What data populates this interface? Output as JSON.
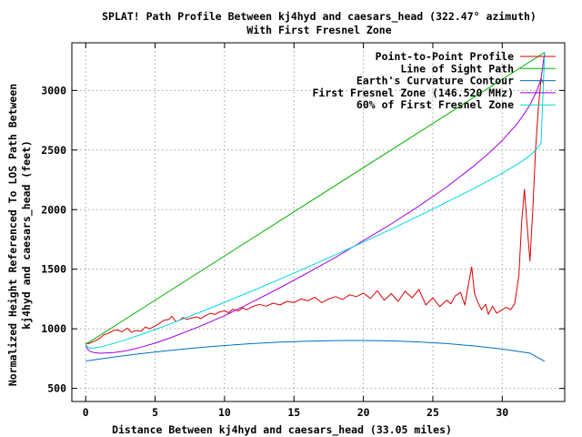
{
  "chart_data": {
    "type": "line",
    "title": "SPLAT! Path Profile Between kj4hyd and caesars_head (322.47° azimuth)",
    "subtitle": "With First Fresnel Zone",
    "xlabel": "Distance Between kj4hyd and caesars_head (33.05 miles)",
    "ylabel_line1": "Normalized Height Referenced To LOS Path Between",
    "ylabel_line2": "kj4hyd and caesars_head (feet)",
    "xlim": [
      -1,
      34.5
    ],
    "ylim": [
      390,
      3400
    ],
    "x_ticks": [
      0,
      5,
      10,
      15,
      20,
      25,
      30
    ],
    "x_tick_labels": [
      "0",
      "5",
      "10",
      "15",
      "20",
      "25",
      "30"
    ],
    "y_ticks": [
      500,
      1000,
      1500,
      2000,
      2500,
      3000
    ],
    "y_tick_labels": [
      "500",
      "1000",
      "1500",
      "2000",
      "2500",
      "3000"
    ],
    "grid": true,
    "legend_position": "top-right",
    "series": [
      {
        "name": "Point-to-Point Profile",
        "color": "#dd0000",
        "x": [
          0,
          0.2,
          0.5,
          0.8,
          1.0,
          1.3,
          1.6,
          2.0,
          2.3,
          2.6,
          3.0,
          3.3,
          3.6,
          4.0,
          4.3,
          4.6,
          5.0,
          5.3,
          5.6,
          6.0,
          6.2,
          6.5,
          6.8,
          7.0,
          7.3,
          7.6,
          8.0,
          8.3,
          8.6,
          9.0,
          9.3,
          9.6,
          10.0,
          10.3,
          10.6,
          11.0,
          11.3,
          11.6,
          12.0,
          12.5,
          13.0,
          13.5,
          14.0,
          14.5,
          15.0,
          15.5,
          16.0,
          16.5,
          17.0,
          17.5,
          18.0,
          18.5,
          19.0,
          19.5,
          20.0,
          20.5,
          21.0,
          21.5,
          22.0,
          22.5,
          23.0,
          23.5,
          24.0,
          24.5,
          25.0,
          25.5,
          26.0,
          26.3,
          26.6,
          27.0,
          27.3,
          27.6,
          27.8,
          28.0,
          28.2,
          28.5,
          28.8,
          29.0,
          29.3,
          29.6,
          30.0,
          30.3,
          30.6,
          30.9,
          31.2,
          31.4,
          31.6,
          31.8,
          32.0,
          32.2,
          32.4,
          32.6,
          32.8,
          33.0
        ],
        "y": [
          880,
          875,
          890,
          905,
          920,
          950,
          960,
          985,
          990,
          975,
          1005,
          970,
          985,
          980,
          1015,
          1000,
          1025,
          1045,
          1070,
          1080,
          1105,
          1060,
          1075,
          1095,
          1080,
          1090,
          1100,
          1085,
          1110,
          1130,
          1120,
          1140,
          1150,
          1135,
          1165,
          1150,
          1175,
          1160,
          1185,
          1205,
          1190,
          1215,
          1200,
          1230,
          1220,
          1250,
          1235,
          1265,
          1220,
          1250,
          1270,
          1245,
          1285,
          1270,
          1300,
          1255,
          1320,
          1240,
          1295,
          1230,
          1315,
          1260,
          1330,
          1200,
          1260,
          1185,
          1240,
          1210,
          1275,
          1305,
          1200,
          1395,
          1520,
          1300,
          1235,
          1160,
          1205,
          1120,
          1190,
          1130,
          1160,
          1180,
          1160,
          1210,
          1450,
          1900,
          2170,
          1850,
          1570,
          2000,
          2500,
          2850,
          3100,
          3050
        ]
      },
      {
        "name": "Line of Sight Path",
        "color": "#00b000",
        "x": [
          0,
          33.05
        ],
        "y": [
          870,
          3320
        ]
      },
      {
        "name": "Earth's Curvature Contour",
        "color": "#0070c0",
        "x": [
          0,
          2,
          4,
          6,
          8,
          10,
          12,
          14,
          16,
          18,
          20,
          22,
          24,
          26,
          28,
          30,
          32,
          33.05
        ],
        "y": [
          730,
          763,
          792,
          818,
          841,
          860,
          876,
          888,
          896,
          901,
          902,
          899,
          890,
          876,
          856,
          830,
          796,
          728
        ]
      },
      {
        "name": "First Fresnel Zone (146.520 MHz)",
        "color": "#a000e0",
        "x": [
          0,
          0.1,
          0.3,
          0.6,
          1.0,
          2,
          3,
          4,
          5,
          6,
          8,
          10,
          12,
          14,
          16,
          18,
          20,
          22,
          24,
          26,
          28,
          29,
          30,
          31,
          31.5,
          32,
          32.5,
          32.8,
          33.05
        ],
        "y": [
          870,
          834,
          812,
          800,
          795,
          800,
          818,
          846,
          880,
          920,
          1010,
          1110,
          1225,
          1345,
          1470,
          1600,
          1740,
          1880,
          2030,
          2190,
          2370,
          2470,
          2580,
          2710,
          2790,
          2880,
          3000,
          3100,
          3320
        ]
      },
      {
        "name": "60% of First Fresnel Zone",
        "color": "#00d8e0",
        "x": [
          0,
          0.1,
          0.3,
          0.6,
          1.0,
          2,
          3,
          4,
          5,
          6,
          8,
          10,
          12,
          14,
          16,
          18,
          20,
          22,
          24,
          26,
          28,
          29,
          30,
          31,
          31.5,
          32,
          32.5,
          32.8,
          33.05
        ],
        "y": [
          870,
          848,
          838,
          838,
          846,
          877,
          912,
          952,
          994,
          1038,
          1128,
          1222,
          1318,
          1417,
          1518,
          1622,
          1728,
          1836,
          1948,
          2062,
          2180,
          2242,
          2305,
          2375,
          2412,
          2455,
          2510,
          2560,
          3320
        ]
      }
    ]
  }
}
